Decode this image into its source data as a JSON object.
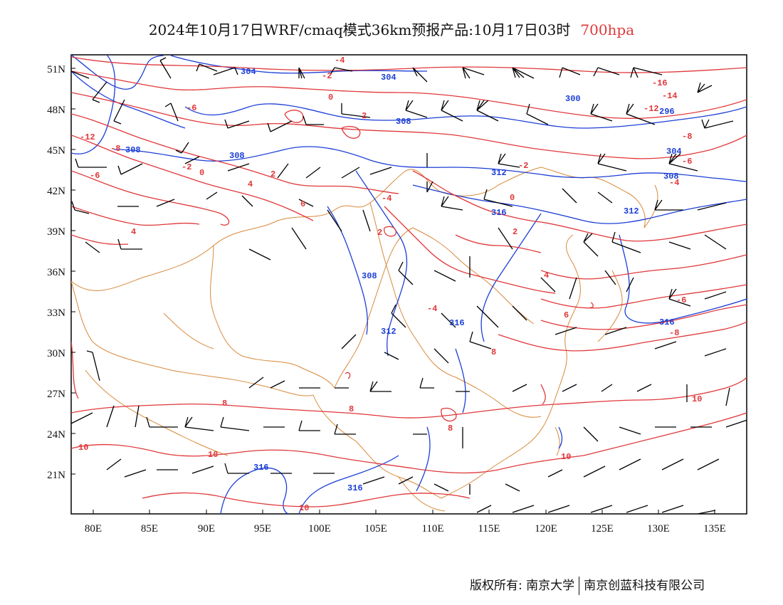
{
  "title": {
    "main": "2024年10月17日WRF/cmaq模式36km预报产品:10月17日03时",
    "level": "700hpa"
  },
  "axes": {
    "lat_labels": [
      "51N",
      "48N",
      "45N",
      "42N",
      "39N",
      "36N",
      "33N",
      "30N",
      "27N",
      "24N",
      "21N"
    ],
    "lon_labels": [
      "80E",
      "85E",
      "90E",
      "95E",
      "100E",
      "105E",
      "110E",
      "115E",
      "120E",
      "125E",
      "130E",
      "135E"
    ]
  },
  "contour_labels": {
    "temperature": [
      "-4",
      "-2",
      "0",
      "2",
      "-6",
      "-12",
      "-8",
      "-6",
      "-2",
      "0",
      "2",
      "4",
      "6",
      "4",
      "2",
      "-4",
      "-2",
      "-14",
      "-12",
      "-16",
      "-8",
      "-6",
      "-4",
      "0",
      "2",
      "4",
      "6",
      "8",
      "-4",
      "-6",
      "-8",
      "8",
      "8",
      "8",
      "10",
      "10",
      "10",
      "10",
      "10"
    ],
    "height": [
      "304",
      "304",
      "308",
      "308",
      "308",
      "312",
      "316",
      "308",
      "312",
      "316",
      "316",
      "316",
      "300",
      "296",
      "304",
      "308",
      "312",
      "316"
    ]
  },
  "footer": {
    "left": "版权所有: 南京大学",
    "right": "南京创蓝科技有限公司"
  },
  "colors": {
    "temperature": "#e0383b",
    "height": "#1c3fd6",
    "border": "#d8893a",
    "barb": "#000000"
  }
}
